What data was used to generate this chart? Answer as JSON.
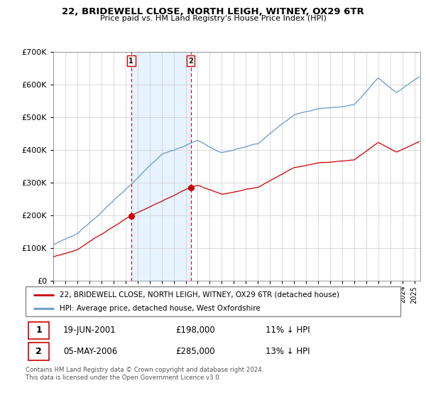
{
  "title": "22, BRIDEWELL CLOSE, NORTH LEIGH, WITNEY, OX29 6TR",
  "subtitle": "Price paid vs. HM Land Registry's House Price Index (HPI)",
  "legend_line1": "22, BRIDEWELL CLOSE, NORTH LEIGH, WITNEY, OX29 6TR (detached house)",
  "legend_line2": "HPI: Average price, detached house, West Oxfordshire",
  "transaction1_date": "19-JUN-2001",
  "transaction1_price": "£198,000",
  "transaction1_hpi": "11% ↓ HPI",
  "transaction2_date": "05-MAY-2006",
  "transaction2_price": "£285,000",
  "transaction2_hpi": "13% ↓ HPI",
  "footer": "Contains HM Land Registry data © Crown copyright and database right 2024.\nThis data is licensed under the Open Government Licence v3.0.",
  "ylim": [
    0,
    700000
  ],
  "yticks": [
    0,
    100000,
    200000,
    300000,
    400000,
    500000,
    600000,
    700000
  ],
  "hpi_color": "#6699cc",
  "price_color": "#cc0000",
  "vline_color": "#cc0000",
  "shade_color": "#ddeeff",
  "transaction1_x": 2001.47,
  "transaction2_x": 2006.42,
  "transaction1_y": 198000,
  "transaction2_y": 285000,
  "xmin": 1995.0,
  "xmax": 2025.5,
  "grid_color": "#cccccc"
}
